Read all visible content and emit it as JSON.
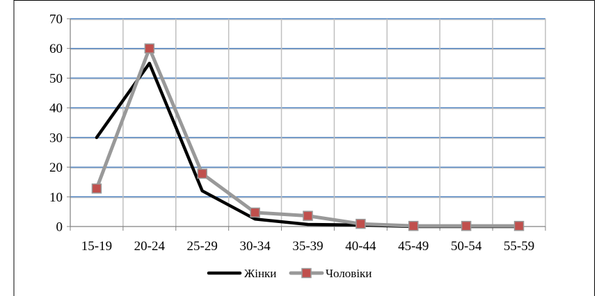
{
  "chart_data": {
    "type": "line",
    "categories": [
      "15-19",
      "20-24",
      "25-29",
      "30-34",
      "35-39",
      "40-44",
      "45-49",
      "50-54",
      "55-59"
    ],
    "series": [
      {
        "name": "Жінки",
        "values": [
          30,
          55,
          12,
          2.5,
          0.7,
          0.5,
          0,
          0,
          0
        ],
        "color": "#000000",
        "marker": "none"
      },
      {
        "name": "Чоловіки",
        "values": [
          12.8,
          60,
          17.8,
          4.7,
          3.6,
          0.9,
          0.2,
          0.2,
          0.2
        ],
        "color": "#999999",
        "marker": "square",
        "marker_color": "#c0504d"
      }
    ],
    "ylim": [
      0,
      70
    ],
    "yticks": [
      "0",
      "10",
      "20",
      "30",
      "40",
      "50",
      "60",
      "70"
    ],
    "grid": {
      "horizontal": true,
      "vertical": true,
      "horizontal_color": "#4f81bd",
      "vertical_color": "#bfbfbf"
    },
    "legend_position": "bottom",
    "title": "",
    "xlabel": "",
    "ylabel": ""
  }
}
